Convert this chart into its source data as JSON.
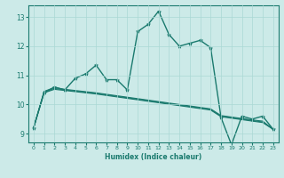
{
  "xlabel": "Humidex (Indice chaleur)",
  "bg_color": "#cceae8",
  "line_color": "#1a7a6e",
  "grid_color": "#aad8d4",
  "xlim": [
    -0.5,
    23.5
  ],
  "ylim": [
    8.7,
    13.4
  ],
  "yticks": [
    9,
    10,
    11,
    12,
    13
  ],
  "xticks": [
    0,
    1,
    2,
    3,
    4,
    5,
    6,
    7,
    8,
    9,
    10,
    11,
    12,
    13,
    14,
    15,
    16,
    17,
    18,
    19,
    20,
    21,
    22,
    23
  ],
  "lines": [
    {
      "x": [
        0,
        1,
        2,
        3,
        4,
        5,
        6,
        7,
        8,
        9,
        10,
        11,
        12,
        13,
        14,
        15,
        16,
        17,
        18,
        19,
        20,
        21,
        22,
        23
      ],
      "y": [
        9.2,
        10.4,
        10.6,
        10.5,
        10.9,
        11.05,
        11.35,
        10.85,
        10.85,
        10.5,
        12.5,
        12.75,
        13.2,
        12.4,
        12.0,
        12.1,
        12.2,
        11.95,
        9.55,
        8.62,
        9.6,
        9.5,
        9.6,
        9.15
      ],
      "marker": "*",
      "lw": 1.0
    },
    {
      "x": [
        0,
        1,
        2,
        3,
        4,
        5,
        6,
        7,
        8,
        9,
        10,
        11,
        12,
        13,
        14,
        15,
        16,
        17,
        18,
        19,
        20,
        21,
        22,
        23
      ],
      "y": [
        9.2,
        10.45,
        10.58,
        10.52,
        10.48,
        10.44,
        10.4,
        10.35,
        10.3,
        10.25,
        10.2,
        10.15,
        10.1,
        10.05,
        10.0,
        9.95,
        9.9,
        9.85,
        9.62,
        9.57,
        9.52,
        9.47,
        9.43,
        9.15
      ],
      "marker": null,
      "lw": 0.8
    },
    {
      "x": [
        0,
        1,
        2,
        3,
        4,
        5,
        6,
        7,
        8,
        9,
        10,
        11,
        12,
        13,
        14,
        15,
        16,
        17,
        18,
        19,
        20,
        21,
        22,
        23
      ],
      "y": [
        9.2,
        10.42,
        10.55,
        10.5,
        10.46,
        10.42,
        10.38,
        10.33,
        10.28,
        10.23,
        10.18,
        10.13,
        10.08,
        10.03,
        9.98,
        9.93,
        9.88,
        9.83,
        9.6,
        9.55,
        9.5,
        9.45,
        9.4,
        9.15
      ],
      "marker": null,
      "lw": 0.8
    },
    {
      "x": [
        0,
        1,
        2,
        3,
        4,
        5,
        6,
        7,
        8,
        9,
        10,
        11,
        12,
        13,
        14,
        15,
        16,
        17,
        18,
        19,
        20,
        21,
        22,
        23
      ],
      "y": [
        9.2,
        10.4,
        10.52,
        10.48,
        10.44,
        10.4,
        10.36,
        10.31,
        10.26,
        10.21,
        10.16,
        10.11,
        10.06,
        10.01,
        9.96,
        9.91,
        9.86,
        9.81,
        9.58,
        9.53,
        9.48,
        9.43,
        9.38,
        9.15
      ],
      "marker": null,
      "lw": 0.8
    }
  ]
}
